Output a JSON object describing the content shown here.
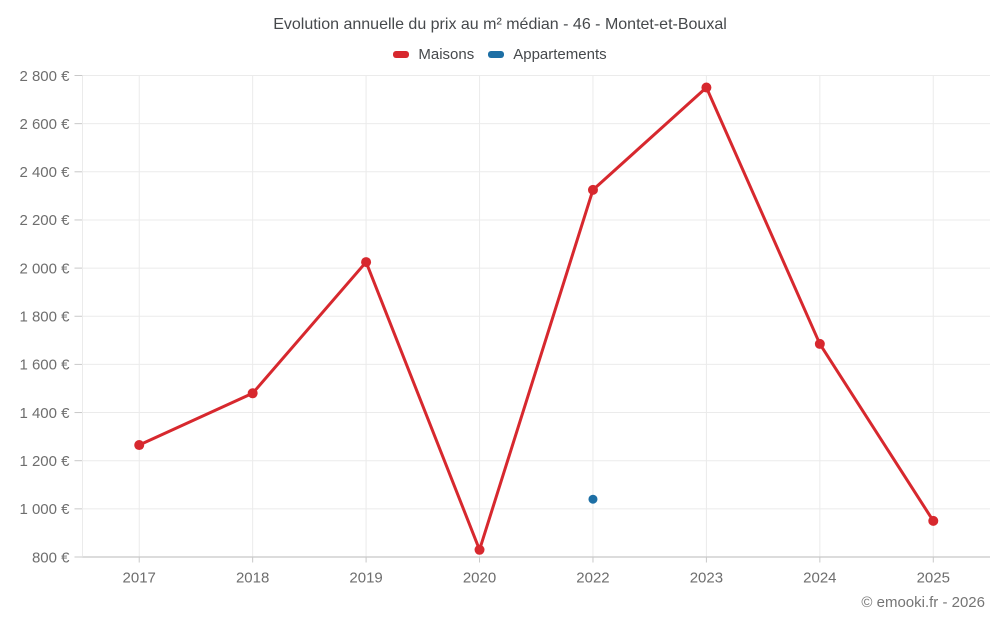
{
  "chart_data": {
    "type": "line",
    "title": "Evolution annuelle du prix au m² médian - 46 - Montet-et-Bouxal",
    "categories": [
      "2017",
      "2018",
      "2019",
      "2020",
      "2022",
      "2023",
      "2024",
      "2025"
    ],
    "series": [
      {
        "name": "Maisons",
        "color": "#d7282e",
        "line_width": 3,
        "point_radius": 5,
        "values": [
          1265,
          1480,
          2025,
          830,
          2325,
          2750,
          1685,
          950
        ]
      },
      {
        "name": "Appartements",
        "color": "#1d6fa5",
        "line_width": 3,
        "point_radius": 4.5,
        "values": [
          null,
          null,
          null,
          null,
          1040,
          null,
          null,
          null
        ]
      }
    ],
    "xlabel": "",
    "ylabel": "",
    "ylim": [
      800,
      2800
    ],
    "ytick_step": 200,
    "ytick_suffix": " €",
    "grid": true,
    "legend_position": "top"
  },
  "footer": "© emooki.fr - 2026",
  "colors": {
    "background": "#ffffff",
    "grid": "#ebebeb",
    "axis": "#c8c8c8",
    "tick_label": "#6e6e6e",
    "title_text": "#46494c",
    "legend_text": "#46494c",
    "footer_text": "#757575"
  }
}
